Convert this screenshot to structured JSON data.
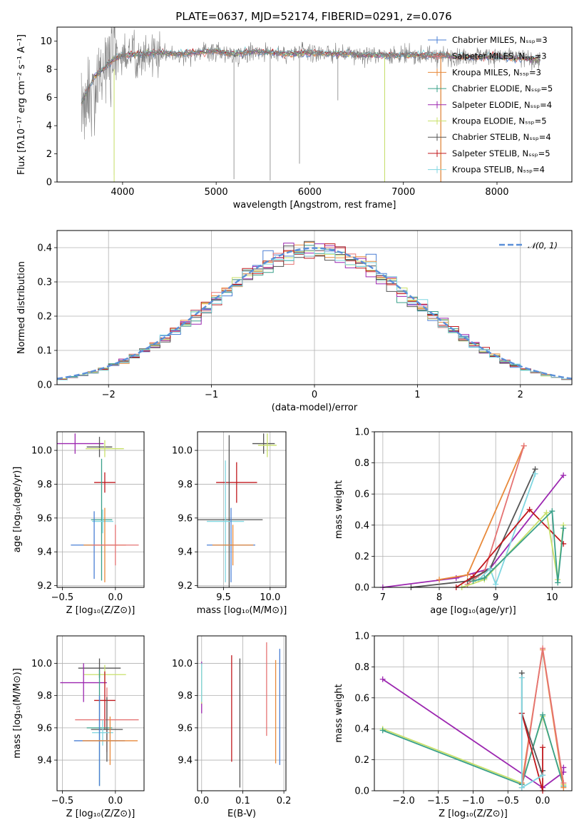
{
  "title": "PLATE=0637, MJD=52174, FIBERID=0291, z=0.076",
  "chart_data": [
    {
      "id": "spectrum",
      "type": "line",
      "xlabel": "wavelength [Angstrom, rest frame]",
      "ylabel": "Flux [fλ10⁻¹⁷ erg cm⁻² s⁻¹ A⁻¹]",
      "xlim": [
        3300,
        8800
      ],
      "ylim": [
        0,
        11
      ],
      "xticks": [
        4000,
        5000,
        6000,
        7000,
        8000
      ],
      "yticks": [
        0,
        2,
        4,
        6,
        8,
        10
      ],
      "data_flux": {
        "name": "data",
        "color": "#808080",
        "x": [
          3560,
          3700,
          3800,
          3900,
          4000,
          4200,
          4400,
          4600,
          4800,
          5000,
          5200,
          5400,
          5600,
          5800,
          6000,
          6200,
          6400,
          6600,
          6800,
          7000,
          7200,
          7400,
          7600,
          7800,
          8000,
          8200,
          8400
        ],
        "y": [
          5.2,
          7.0,
          7.8,
          8.6,
          9.0,
          9.1,
          9.2,
          9.0,
          9.2,
          9.3,
          9.0,
          9.3,
          9.2,
          9.1,
          9.2,
          9.1,
          9.1,
          9.0,
          9.1,
          9.0,
          9.0,
          8.9,
          8.9,
          9.0,
          8.9,
          8.9,
          8.6
        ]
      },
      "series": [
        {
          "name": "Chabrier MILES, N_SSP=3",
          "color": "#4a7fd4"
        },
        {
          "name": "Salpeter MILES, N_SSP=3",
          "color": "#e57373"
        },
        {
          "name": "Kroupa MILES, N_SSP=3",
          "color": "#e8893a"
        },
        {
          "name": "Chabrier ELODIE, N_SSP=5",
          "color": "#3aa08a"
        },
        {
          "name": "Salpeter ELODIE, N_SSP=4",
          "color": "#9c27b0"
        },
        {
          "name": "Kroupa ELODIE, N_SSP=5",
          "color": "#c8e06a"
        },
        {
          "name": "Chabrier STELIB, N_SSP=4",
          "color": "#555555"
        },
        {
          "name": "Salpeter STELIB, N_SSP=5",
          "color": "#c0181d"
        },
        {
          "name": "Kroupa STELIB, N_SSP=4",
          "color": "#7fd6e0"
        }
      ],
      "model_x": [
        3560,
        3700,
        3800,
        3900,
        4000,
        4200,
        4400,
        4600,
        4800,
        5000,
        5200,
        5400,
        5600,
        5800,
        6000,
        6200,
        6400,
        6600,
        6800,
        7000,
        7200,
        7400,
        7600,
        7800,
        8000,
        8200,
        8400
      ],
      "model_y": [
        5.6,
        7.5,
        8.1,
        8.7,
        9.0,
        9.1,
        9.2,
        9.1,
        9.2,
        9.3,
        9.1,
        9.3,
        9.2,
        9.1,
        9.2,
        9.1,
        9.1,
        9.0,
        9.0,
        9.0,
        9.0,
        9.0,
        8.9,
        8.9,
        8.9,
        8.8,
        8.7
      ]
    },
    {
      "id": "residuals",
      "type": "line",
      "xlabel": "(data-model)/error",
      "ylabel": "Normed distribution",
      "xlim": [
        -2.5,
        2.5
      ],
      "ylim": [
        0,
        0.45
      ],
      "xticks": [
        -2,
        -1,
        0,
        1,
        2
      ],
      "yticks": [
        0.0,
        0.1,
        0.2,
        0.3,
        0.4
      ],
      "legend": "𝒩(0, 1)",
      "gaussian": {
        "mu": 0,
        "sigma": 1,
        "color": "#5a8fd8"
      }
    },
    {
      "id": "age-vs-Z",
      "type": "scatter",
      "xlabel": "Z [log₁₀(Z/Z⊙)]",
      "ylabel": "age  [log₁₀(age/yr)]",
      "xlim": [
        -0.55,
        0.27
      ],
      "ylim": [
        9.19,
        10.11
      ],
      "xticks": [
        -0.5,
        0.0
      ],
      "yticks": [
        9.2,
        9.4,
        9.6,
        9.8,
        10.0
      ],
      "points": [
        {
          "x": -0.38,
          "y": 10.04,
          "xerr": 0.27,
          "yerr": 0.06,
          "color": "#9c27b0"
        },
        {
          "x": -0.15,
          "y": 10.02,
          "xerr": 0.12,
          "yerr": 0.06,
          "color": "#555555"
        },
        {
          "x": -0.1,
          "y": 10.01,
          "xerr": 0.18,
          "yerr": 0.05,
          "color": "#c8e06a"
        },
        {
          "x": -0.1,
          "y": 9.81,
          "xerr": 0.1,
          "yerr": 0.06,
          "color": "#c0181d"
        },
        {
          "x": -0.13,
          "y": 9.59,
          "xerr": 0.1,
          "yerr": 0.36,
          "color": "#3aa08a"
        },
        {
          "x": -0.12,
          "y": 9.58,
          "xerr": 0.1,
          "yerr": 0.07,
          "color": "#7fd6e0"
        },
        {
          "x": -0.2,
          "y": 9.44,
          "xerr": 0.22,
          "yerr": 0.2,
          "color": "#4a7fd4"
        },
        {
          "x": -0.1,
          "y": 9.44,
          "xerr": 0.2,
          "yerr": 0.22,
          "color": "#e8893a"
        },
        {
          "x": 0.0,
          "y": 9.44,
          "xerr": 0.22,
          "yerr": 0.12,
          "color": "#e57373"
        }
      ]
    },
    {
      "id": "age-vs-mass",
      "type": "scatter",
      "xlabel": "mass [log₁₀(M/M⊙)]",
      "ylabel": "",
      "xlim": [
        9.22,
        10.17
      ],
      "ylim": [
        9.19,
        10.11
      ],
      "xticks": [
        9.5,
        10.0
      ],
      "yticks": [
        9.2,
        9.4,
        9.6,
        9.8,
        10.0
      ],
      "points": [
        {
          "x": 9.93,
          "y": 10.04,
          "xerr": 0.12,
          "yerr": 0.06,
          "color": "#555555"
        },
        {
          "x": 9.97,
          "y": 10.03,
          "xerr": 0.1,
          "yerr": 0.07,
          "color": "#c8e06a"
        },
        {
          "x": 9.64,
          "y": 9.81,
          "xerr": 0.22,
          "yerr": 0.12,
          "color": "#c0181d"
        },
        {
          "x": 9.56,
          "y": 9.59,
          "xerr": 0.36,
          "yerr": 0.5,
          "color": "#555555"
        },
        {
          "x": 9.52,
          "y": 9.58,
          "xerr": 0.2,
          "yerr": 0.36,
          "color": "#7fd6e0"
        },
        {
          "x": 9.58,
          "y": 9.44,
          "xerr": 0.26,
          "yerr": 0.22,
          "color": "#4a7fd4"
        },
        {
          "x": 9.6,
          "y": 9.44,
          "xerr": 0.22,
          "yerr": 0.12,
          "color": "#e8893a"
        }
      ]
    },
    {
      "id": "mass-weight-vs-age",
      "type": "line",
      "xlabel": "age  [log₁₀(age/yr)]",
      "ylabel": "mass weight",
      "xlim": [
        6.85,
        10.35
      ],
      "ylim": [
        0,
        1.0
      ],
      "xticks": [
        7,
        8,
        9,
        10
      ],
      "yticks": [
        0.0,
        0.2,
        0.4,
        0.6,
        0.8,
        1.0
      ],
      "series": [
        {
          "name": "Salpeter ELODIE",
          "color": "#9c27b0",
          "x": [
            7.0,
            8.3,
            8.9,
            10.2
          ],
          "y": [
            0.0,
            0.06,
            0.12,
            0.72
          ]
        },
        {
          "name": "Kroupa MILES",
          "color": "#e8893a",
          "x": [
            8.0,
            8.5,
            9.5
          ],
          "y": [
            0.05,
            0.08,
            0.91
          ]
        },
        {
          "name": "Salpeter MILES",
          "color": "#e57373",
          "x": [
            8.5,
            8.8,
            9.5
          ],
          "y": [
            0.02,
            0.1,
            0.91
          ]
        },
        {
          "name": "Chabrier STELIB",
          "color": "#555555",
          "x": [
            7.5,
            8.5,
            8.9,
            9.7
          ],
          "y": [
            0.0,
            0.04,
            0.12,
            0.76
          ]
        },
        {
          "name": "Kroupa STELIB",
          "color": "#7fd6e0",
          "x": [
            8.7,
            8.9,
            9.0,
            9.7
          ],
          "y": [
            0.05,
            0.12,
            0.02,
            0.73
          ]
        },
        {
          "name": "Salpeter STELIB",
          "color": "#c0181d",
          "x": [
            8.3,
            8.6,
            9.6,
            10.2
          ],
          "y": [
            0.0,
            0.07,
            0.5,
            0.28
          ]
        },
        {
          "name": "Kroupa ELODIE",
          "color": "#c8e06a",
          "x": [
            8.4,
            8.8,
            9.9,
            10.1,
            10.2
          ],
          "y": [
            0.0,
            0.05,
            0.48,
            0.05,
            0.4
          ]
        },
        {
          "name": "Chabrier ELODIE",
          "color": "#3aa08a",
          "x": [
            8.6,
            8.8,
            10.0,
            10.1,
            10.2
          ],
          "y": [
            0.04,
            0.06,
            0.49,
            0.03,
            0.38
          ]
        }
      ]
    },
    {
      "id": "mass-vs-Z",
      "type": "scatter",
      "xlabel": "Z [log₁₀(Z/Z⊙)]",
      "ylabel": "mass [log₁₀(M/M⊙)]",
      "xlim": [
        -0.55,
        0.27
      ],
      "ylim": [
        9.21,
        10.17
      ],
      "xticks": [
        -0.5,
        0.0
      ],
      "yticks": [
        9.4,
        9.6,
        9.8,
        10.0
      ],
      "points": [
        {
          "x": -0.15,
          "y": 9.97,
          "xerr": 0.2,
          "yerr": 0.06,
          "color": "#555555"
        },
        {
          "x": -0.1,
          "y": 9.93,
          "xerr": 0.2,
          "yerr": 0.06,
          "color": "#c8e06a"
        },
        {
          "x": -0.3,
          "y": 9.88,
          "xerr": 0.22,
          "yerr": 0.12,
          "color": "#9c27b0"
        },
        {
          "x": -0.1,
          "y": 9.77,
          "xerr": 0.1,
          "yerr": 0.18,
          "color": "#c0181d"
        },
        {
          "x": -0.08,
          "y": 9.65,
          "xerr": 0.3,
          "yerr": 0.2,
          "color": "#e57373"
        },
        {
          "x": -0.15,
          "y": 9.6,
          "xerr": 0.12,
          "yerr": 0.36,
          "color": "#3aa08a"
        },
        {
          "x": -0.08,
          "y": 9.59,
          "xerr": 0.15,
          "yerr": 0.2,
          "color": "#555555"
        },
        {
          "x": -0.12,
          "y": 9.57,
          "xerr": 0.1,
          "yerr": 0.08,
          "color": "#7fd6e0"
        },
        {
          "x": -0.15,
          "y": 9.52,
          "xerr": 0.24,
          "yerr": 0.28,
          "color": "#4a7fd4"
        },
        {
          "x": -0.05,
          "y": 9.52,
          "xerr": 0.26,
          "yerr": 0.15,
          "color": "#e8893a"
        }
      ]
    },
    {
      "id": "mass-vs-EBV",
      "type": "scatter",
      "xlabel": "E(B-V)",
      "ylabel": "",
      "xlim": [
        -0.01,
        0.205
      ],
      "ylim": [
        9.21,
        10.17
      ],
      "xticks": [
        0.0,
        0.1,
        0.2
      ],
      "yticks": [
        9.4,
        9.6,
        9.8,
        10.0
      ],
      "points": [
        {
          "x": 0.0,
          "y": 9.85,
          "yerr": 0.16,
          "color": "#9c27b0"
        },
        {
          "x": 0.0,
          "y": 9.87,
          "yerr": 0.12,
          "color": "#c8e06a"
        },
        {
          "x": 0.0,
          "y": 9.88,
          "yerr": 0.12,
          "color": "#7fd6e0"
        },
        {
          "x": 0.073,
          "y": 9.72,
          "yerr": 0.33,
          "color": "#c0181d"
        },
        {
          "x": 0.093,
          "y": 9.63,
          "yerr": 0.4,
          "color": "#555555"
        },
        {
          "x": 0.158,
          "y": 9.84,
          "yerr": 0.29,
          "color": "#e57373"
        },
        {
          "x": 0.18,
          "y": 9.7,
          "yerr": 0.32,
          "color": "#e8893a"
        },
        {
          "x": 0.19,
          "y": 9.73,
          "yerr": 0.36,
          "color": "#4a7fd4"
        }
      ]
    },
    {
      "id": "mass-weight-vs-Z",
      "type": "line",
      "xlabel": "Z [log₁₀(Z/Z⊙)]",
      "ylabel": "mass weight",
      "xlim": [
        -2.42,
        0.42
      ],
      "ylim": [
        0,
        1.0
      ],
      "xticks": [
        -2.0,
        -1.5,
        -1.0,
        -0.5,
        0.0
      ],
      "yticks": [
        0.0,
        0.2,
        0.4,
        0.6,
        0.8,
        1.0
      ],
      "series": [
        {
          "name": "Salpeter ELODIE",
          "color": "#9c27b0",
          "x": [
            -2.3,
            0.0,
            0.3,
            0.3
          ],
          "y": [
            0.72,
            0.02,
            0.12,
            0.15
          ]
        },
        {
          "name": "Kroupa ELODIE",
          "color": "#c8e06a",
          "x": [
            -2.3,
            -0.3,
            0.0,
            0.3
          ],
          "y": [
            0.4,
            0.05,
            0.48,
            0.04
          ]
        },
        {
          "name": "Chabrier ELODIE",
          "color": "#3aa08a",
          "x": [
            -2.3,
            -0.3,
            0.0,
            0.3
          ],
          "y": [
            0.39,
            0.04,
            0.49,
            0.03
          ]
        },
        {
          "name": "Kroupa MILES",
          "color": "#e8893a",
          "x": [
            -0.3,
            0.0,
            0.3
          ],
          "y": [
            0.05,
            0.91,
            0.02
          ]
        },
        {
          "name": "Salpeter MILES",
          "color": "#e57373",
          "x": [
            -0.3,
            0.0,
            0.3
          ],
          "y": [
            0.02,
            0.92,
            0.05
          ]
        },
        {
          "name": "Chabrier STELIB",
          "color": "#555555",
          "x": [
            -0.3,
            -0.3,
            0.0,
            0.0
          ],
          "y": [
            0.76,
            0.5,
            0.1,
            0.13
          ]
        },
        {
          "name": "Salpeter STELIB",
          "color": "#c0181d",
          "x": [
            -0.3,
            0.0,
            0.0
          ],
          "y": [
            0.5,
            0.0,
            0.28
          ]
        },
        {
          "name": "Kroupa STELIB",
          "color": "#7fd6e0",
          "x": [
            -0.3,
            -0.3,
            0.0
          ],
          "y": [
            0.73,
            0.02,
            0.1
          ]
        }
      ]
    }
  ]
}
